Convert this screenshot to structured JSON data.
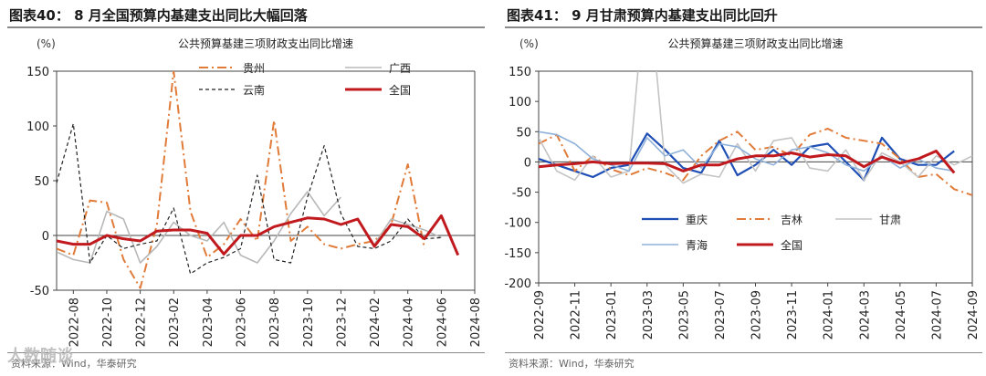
{
  "source_text": "资料来源：Wind，华泰研究",
  "watermark": "人数随谈",
  "charts": [
    {
      "heading": "图表40：   8 月全国预算内基建支出同比大幅回落",
      "chart_data": {
        "type": "line",
        "title": "公共预算基建三项财政支出同比增速",
        "ylabel": "(%)",
        "ylim": [
          -50,
          150
        ],
        "yticks": [
          -50,
          0,
          50,
          100,
          150
        ],
        "x": [
          "2022-07",
          "2022-08",
          "2022-09",
          "2022-10",
          "2022-11",
          "2022-12",
          "2023-01",
          "2023-02",
          "2023-03",
          "2023-04",
          "2023-05",
          "2023-06",
          "2023-07",
          "2023-08",
          "2023-09",
          "2023-10",
          "2023-11",
          "2023-12",
          "2024-01",
          "2024-02",
          "2024-03",
          "2024-04",
          "2024-05",
          "2024-06",
          "2024-07",
          "2024-08"
        ],
        "xticks": [
          "2022-08",
          "2022-10",
          "2022-12",
          "2023-02",
          "2023-04",
          "2023-06",
          "2023-08",
          "2023-10",
          "2023-12",
          "2024-02",
          "2024-04",
          "2024-06",
          "2024-08"
        ],
        "legend_position": "top",
        "series": [
          {
            "name": "贵州",
            "color": "#e07b39",
            "dash": "10,4,2,4",
            "width": 2,
            "values": [
              -12,
              -18,
              32,
              30,
              -22,
              -48,
              10,
              150,
              22,
              -20,
              -8,
              15,
              -5,
              105,
              -5,
              8,
              -8,
              -12,
              -8,
              -5,
              10,
              65,
              -12,
              null,
              null,
              null
            ]
          },
          {
            "name": "广西",
            "color": "#b8b8b8",
            "dash": "",
            "width": 1.6,
            "values": [
              -15,
              -22,
              -25,
              22,
              15,
              -25,
              -10,
              12,
              0,
              -5,
              12,
              -18,
              -25,
              -5,
              20,
              40,
              18,
              35,
              null,
              -8,
              15,
              10,
              5,
              -2,
              null,
              null
            ]
          },
          {
            "name": "云南",
            "color": "#222222",
            "dash": "4,3",
            "width": 1.2,
            "values": [
              48,
              102,
              -25,
              0,
              -12,
              -8,
              -5,
              25,
              -35,
              -25,
              -20,
              -12,
              55,
              -22,
              -25,
              35,
              82,
              20,
              -10,
              -12,
              -5,
              15,
              -3,
              -2,
              null,
              null
            ]
          },
          {
            "name": "全国",
            "color": "#c0191e",
            "dash": "",
            "width": 3,
            "values": [
              -5,
              -8,
              -8,
              0,
              -3,
              -5,
              4,
              5,
              5,
              2,
              -17,
              0,
              0,
              8,
              12,
              16,
              15,
              10,
              15,
              -10,
              10,
              8,
              -3,
              18,
              -18,
              null
            ]
          }
        ]
      }
    },
    {
      "heading": "图表41：   9 月甘肃预算内基建支出同比回升",
      "chart_data": {
        "type": "line",
        "title": "公共预算基建三项财政支出同比增速",
        "ylabel": "(%)",
        "ylim": [
          -200,
          150
        ],
        "yticks": [
          -200,
          -150,
          -100,
          -50,
          0,
          50,
          100,
          150
        ],
        "x": [
          "2022-09",
          "2022-10",
          "2022-11",
          "2022-12",
          "2023-01",
          "2023-02",
          "2023-03",
          "2023-04",
          "2023-05",
          "2023-06",
          "2023-07",
          "2023-08",
          "2023-09",
          "2023-10",
          "2023-11",
          "2023-12",
          "2024-01",
          "2024-02",
          "2024-03",
          "2024-04",
          "2024-05",
          "2024-06",
          "2024-07",
          "2024-08",
          "2024-09"
        ],
        "xticks": [
          "2022-09",
          "2022-11",
          "2023-01",
          "2023-03",
          "2023-05",
          "2023-07",
          "2023-09",
          "2023-11",
          "2024-01",
          "2024-03",
          "2024-05",
          "2024-07",
          "2024-09"
        ],
        "legend_position": "bottom",
        "series": [
          {
            "name": "重庆",
            "color": "#1f4fb5",
            "dash": "",
            "width": 2.2,
            "values": [
              5,
              -5,
              -15,
              -25,
              -10,
              -5,
              47,
              20,
              -10,
              -18,
              35,
              -22,
              -5,
              20,
              -5,
              25,
              30,
              0,
              -30,
              40,
              5,
              -5,
              -5,
              18,
              null
            ]
          },
          {
            "name": "吉林",
            "color": "#e07b39",
            "dash": "10,4,2,4",
            "width": 2,
            "values": [
              30,
              45,
              -15,
              10,
              -12,
              -22,
              -10,
              -18,
              -30,
              10,
              35,
              50,
              20,
              25,
              10,
              45,
              55,
              40,
              35,
              30,
              5,
              -25,
              -20,
              -45,
              -55
            ]
          },
          {
            "name": "甘肃",
            "color": "#c4c4c4",
            "dash": "",
            "width": 1.6,
            "values": [
              40,
              -15,
              -30,
              10,
              -25,
              -15,
              320,
              -5,
              -35,
              -20,
              -25,
              30,
              -15,
              35,
              40,
              -10,
              -15,
              20,
              -30,
              15,
              0,
              -25,
              10,
              -5,
              10
            ]
          },
          {
            "name": "青海",
            "color": "#8fb1d9",
            "dash": "",
            "width": 1.6,
            "values": [
              50,
              45,
              30,
              5,
              -5,
              -15,
              40,
              10,
              20,
              -10,
              30,
              25,
              5,
              -5,
              20,
              25,
              15,
              -5,
              -15,
              10,
              -10,
              5,
              -10,
              -15,
              null
            ]
          },
          {
            "name": "全国",
            "color": "#c0191e",
            "dash": "",
            "width": 3,
            "values": [
              -8,
              -5,
              -3,
              0,
              -3,
              -2,
              -2,
              -3,
              -15,
              -5,
              -5,
              5,
              10,
              10,
              15,
              8,
              12,
              10,
              -8,
              8,
              -2,
              5,
              18,
              -18,
              null
            ]
          }
        ]
      }
    }
  ]
}
